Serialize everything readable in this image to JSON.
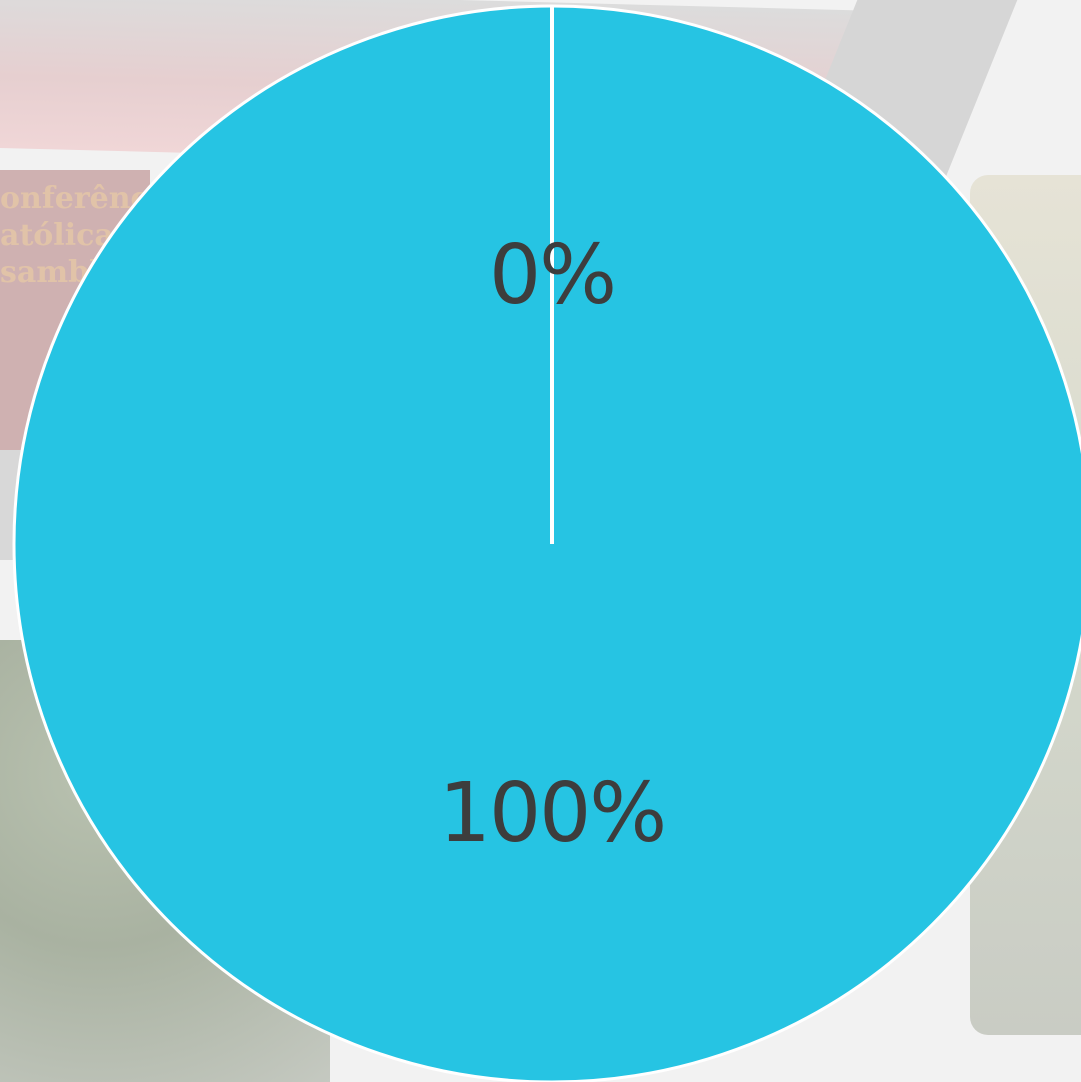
{
  "chart_data": {
    "type": "pie",
    "slices": [
      {
        "label": "0%",
        "value": 0,
        "color": "#26c4e3"
      },
      {
        "label": "100%",
        "value": 100,
        "color": "#26c4e3"
      }
    ],
    "slice_border_color": "#ffffff",
    "legend": "none"
  },
  "background": {
    "overlay_color": "#f2f2f2",
    "faded_text": [
      "onferênci",
      "atólicas",
      "sambl"
    ]
  }
}
